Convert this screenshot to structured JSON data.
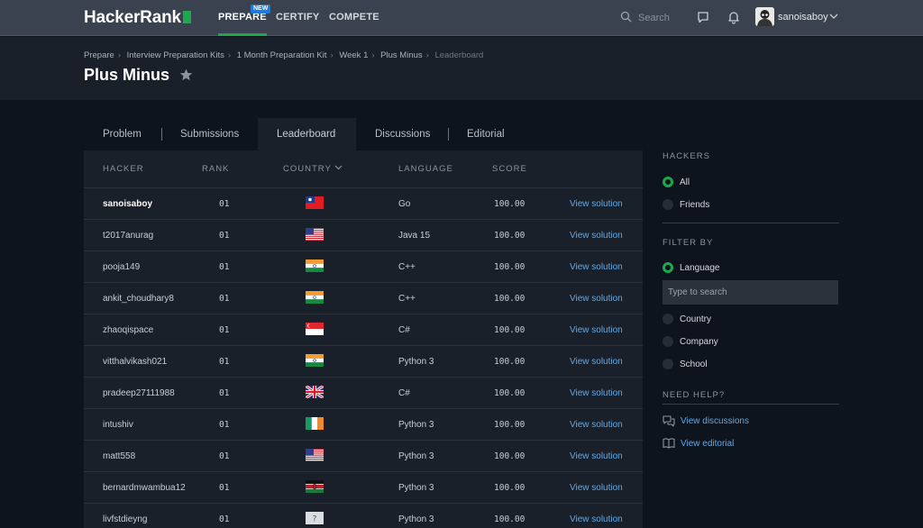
{
  "nav": {
    "logo": "HackerRank",
    "links": [
      "PREPARE",
      "CERTIFY",
      "COMPETE"
    ],
    "new_badge": "NEW",
    "search_placeholder": "Search",
    "username": "sanoisaboy",
    "accent": "#1ba94c"
  },
  "breadcrumb": [
    "Prepare",
    "Interview Preparation Kits",
    "1 Month Preparation Kit",
    "Week 1",
    "Plus Minus",
    "Leaderboard"
  ],
  "page_title": "Plus Minus",
  "tabs": [
    "Problem",
    "Submissions",
    "Leaderboard",
    "Discussions",
    "Editorial"
  ],
  "table": {
    "headers": [
      "HACKER",
      "RANK",
      "COUNTRY",
      "LANGUAGE",
      "SCORE"
    ],
    "view_label": "View solution",
    "rows": [
      {
        "hacker": "sanoisaboy",
        "rank": "01",
        "flag": "taiwan-flag",
        "language": "Go",
        "score": "100.00"
      },
      {
        "hacker": "t2017anurag",
        "rank": "01",
        "flag": "usa-flag",
        "language": "Java 15",
        "score": "100.00"
      },
      {
        "hacker": "pooja149",
        "rank": "01",
        "flag": "india-flag",
        "language": "C++",
        "score": "100.00"
      },
      {
        "hacker": "ankit_choudhary8",
        "rank": "01",
        "flag": "india-flag",
        "language": "C++",
        "score": "100.00"
      },
      {
        "hacker": "zhaoqispace",
        "rank": "01",
        "flag": "singapore-flag",
        "language": "C#",
        "score": "100.00"
      },
      {
        "hacker": "vitthalvikash021",
        "rank": "01",
        "flag": "india-flag",
        "language": "Python 3",
        "score": "100.00"
      },
      {
        "hacker": "pradeep27111988",
        "rank": "01",
        "flag": "uk-flag",
        "language": "C#",
        "score": "100.00"
      },
      {
        "hacker": "intushiv",
        "rank": "01",
        "flag": "ireland-flag",
        "language": "Python 3",
        "score": "100.00"
      },
      {
        "hacker": "matt558",
        "rank": "01",
        "flag": "usa-flag",
        "language": "Python 3",
        "score": "100.00"
      },
      {
        "hacker": "bernardmwambua12",
        "rank": "01",
        "flag": "kenya-flag",
        "language": "Python 3",
        "score": "100.00"
      },
      {
        "hacker": "livfstdieyng",
        "rank": "01",
        "flag": "unknown-flag",
        "language": "Python 3",
        "score": "100.00"
      }
    ]
  },
  "sidebar": {
    "hackers_heading": "HACKERS",
    "hackers_options": [
      "All",
      "Friends"
    ],
    "filter_heading": "FILTER BY",
    "filter_options": [
      "Language",
      "Country",
      "Company",
      "School"
    ],
    "language_search_placeholder": "Type to search",
    "help_heading": "NEED HELP?",
    "help_links": [
      "View discussions",
      "View editorial"
    ]
  }
}
